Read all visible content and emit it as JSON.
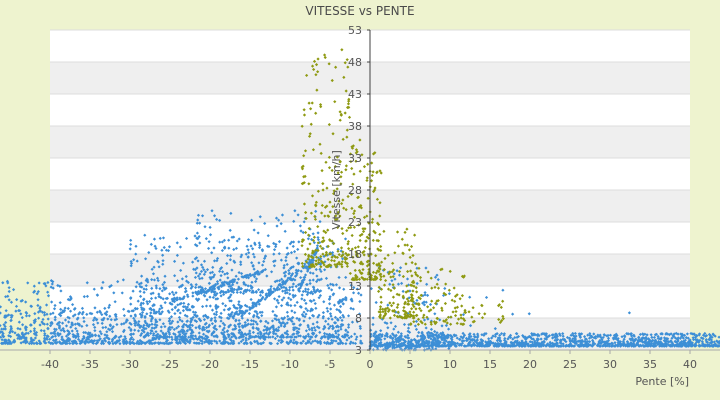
{
  "chart_data": {
    "type": "scatter",
    "title": "VITESSE vs PENTE",
    "xlabel": "Pente [%]",
    "ylabel": "Vitesse [km/h]",
    "xlim": [
      -40,
      40
    ],
    "ylim": [
      3,
      53
    ],
    "x_ticks": [
      -40,
      -35,
      -30,
      -25,
      -20,
      -15,
      -10,
      -5,
      0,
      5,
      10,
      15,
      20,
      25,
      30,
      35,
      40
    ],
    "y_ticks": [
      3,
      8,
      13,
      18,
      23,
      28,
      33,
      38,
      43,
      48,
      53
    ],
    "grid": true,
    "band_colors": [
      "#ffffff",
      "#efefef"
    ],
    "series": [
      {
        "color": "#3d8fd6",
        "marker": "diamond",
        "clusters": [
          {
            "x": [
              -48,
              -1
            ],
            "y": [
              4,
              14
            ],
            "weight": 900
          },
          {
            "x": [
              -30,
              -3
            ],
            "y": [
              5,
              21
            ],
            "weight": 700
          },
          {
            "x": [
              -22,
              -6
            ],
            "y": [
              12,
              25
            ],
            "weight": 220
          },
          {
            "x": [
              -48,
              -15
            ],
            "y": [
              4,
              10
            ],
            "weight": 420
          },
          {
            "x": [
              0,
              45
            ],
            "y": [
              3.6,
              5.6
            ],
            "weight": 1300
          },
          {
            "x": [
              0,
              10
            ],
            "y": [
              3,
              16
            ],
            "weight": 180
          },
          {
            "x": [
              10,
              40
            ],
            "y": [
              4,
              13
            ],
            "weight": 14
          }
        ],
        "streaks": [
          {
            "x": [
              -25,
              -13
            ],
            "y": [
              10.5,
              15.5
            ],
            "weight": 90
          },
          {
            "x": [
              -16,
              -7
            ],
            "y": [
              8.5,
              17
            ],
            "weight": 90
          },
          {
            "x": [
              -9,
              -6.5
            ],
            "y": [
              12,
              19
            ],
            "weight": 50
          }
        ]
      },
      {
        "color": "#8f9a12",
        "marker": "diamond",
        "clusters": [
          {
            "x": [
              -8.5,
              -2.5
            ],
            "y": [
              16,
              50
            ],
            "weight": 230
          },
          {
            "x": [
              -2.5,
              1.5
            ],
            "y": [
              14,
              36
            ],
            "weight": 160
          },
          {
            "x": [
              1,
              6
            ],
            "y": [
              8,
              22
            ],
            "weight": 150
          },
          {
            "x": [
              5,
              12
            ],
            "y": [
              7,
              16
            ],
            "weight": 90
          },
          {
            "x": [
              11,
              17
            ],
            "y": [
              7,
              12
            ],
            "weight": 25
          }
        ]
      }
    ]
  }
}
